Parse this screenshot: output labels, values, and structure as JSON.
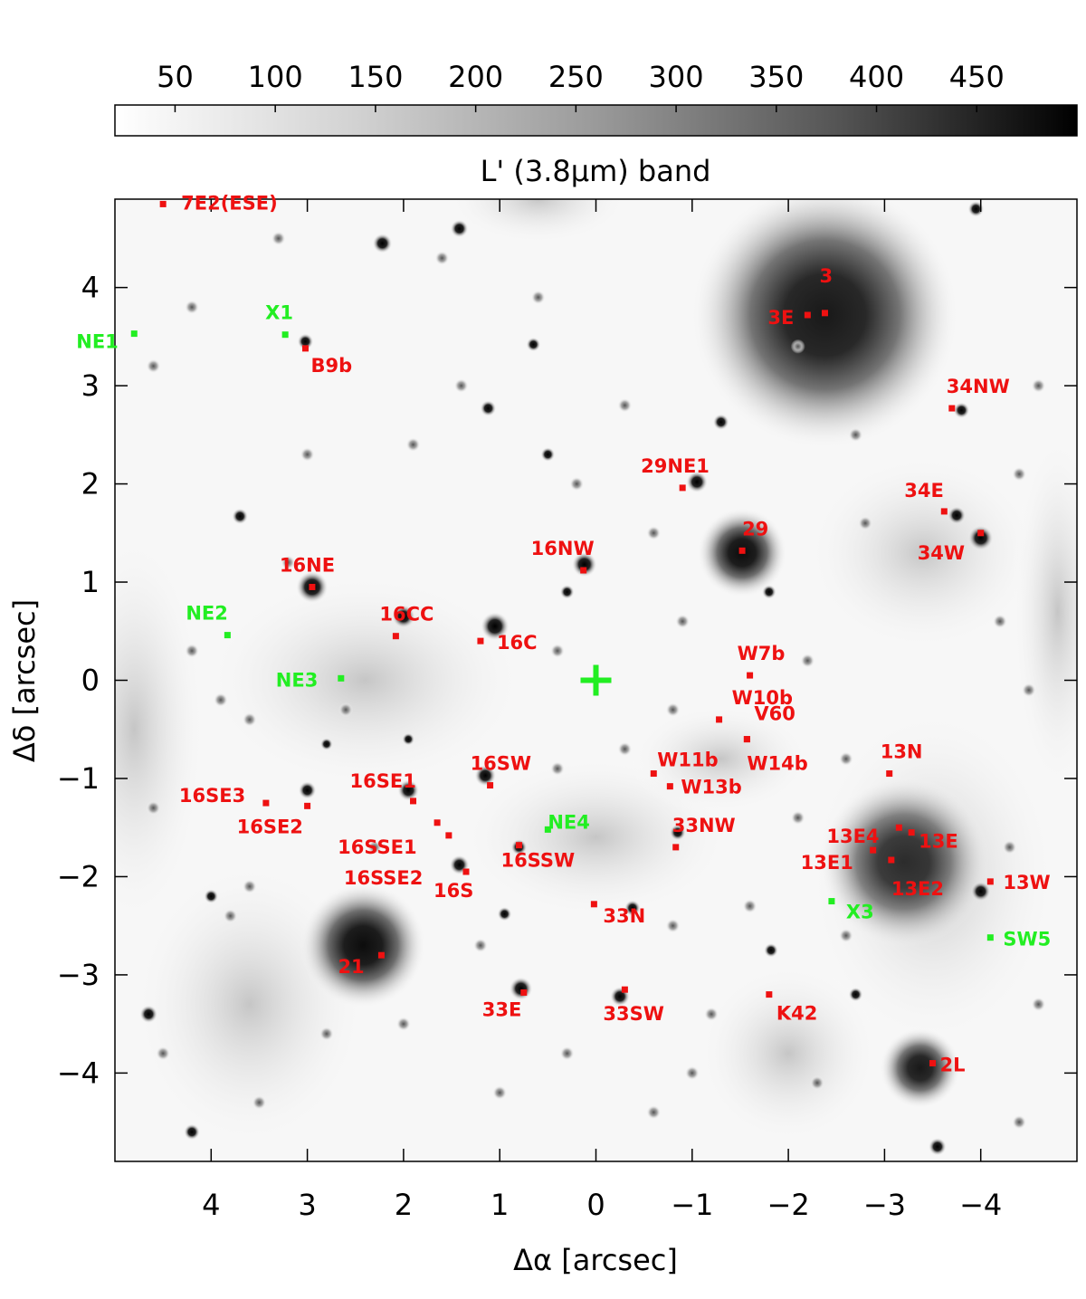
{
  "chart_data": {
    "type": "image",
    "colorbar": {
      "label": "L' (3.8μm) band",
      "ticks": [
        50,
        100,
        150,
        200,
        250,
        300,
        350,
        400,
        450
      ],
      "range": [
        20,
        500
      ],
      "colormap": "gray-reversed"
    },
    "xlabel": "Δα [arcsec]",
    "ylabel": "Δδ [arcsec]",
    "xlim": [
      5,
      -5
    ],
    "ylim": [
      -4.9,
      4.9
    ],
    "xticks": [
      4,
      3,
      2,
      1,
      0,
      -1,
      -2,
      -3,
      -4
    ],
    "yticks": [
      4,
      3,
      2,
      1,
      0,
      -1,
      -2,
      -3,
      -4
    ],
    "xtick_labels": [
      "4",
      "3",
      "2",
      "1",
      "0",
      "−1",
      "−2",
      "−3",
      "−4"
    ],
    "ytick_labels": [
      "4",
      "3",
      "2",
      "1",
      "0",
      "−1",
      "−2",
      "−3",
      "−4"
    ],
    "colors": {
      "red_marker": "#ee1111",
      "green_marker": "#22ee22"
    },
    "center_marker": {
      "x": 0,
      "y": 0,
      "symbol": "plus",
      "color": "#22ee22"
    },
    "sources": [
      {
        "label": "7E2(ESE)",
        "x": 4.5,
        "y": 4.85,
        "color": "red"
      },
      {
        "label": "3",
        "x": -2.38,
        "y": 3.74,
        "color": "red"
      },
      {
        "label": "3E",
        "x": -2.2,
        "y": 3.72,
        "color": "red"
      },
      {
        "label": "X1",
        "x": 3.23,
        "y": 3.52,
        "color": "green"
      },
      {
        "label": "NE1",
        "x": 4.8,
        "y": 3.53,
        "color": "green"
      },
      {
        "label": "B9b",
        "x": 3.02,
        "y": 3.38,
        "color": "red"
      },
      {
        "label": "34NW",
        "x": -3.7,
        "y": 2.77,
        "color": "red"
      },
      {
        "label": "29NE1",
        "x": -0.9,
        "y": 1.96,
        "color": "red"
      },
      {
        "label": "34E",
        "x": -3.62,
        "y": 1.72,
        "color": "red"
      },
      {
        "label": "29",
        "x": -1.52,
        "y": 1.32,
        "color": "red"
      },
      {
        "label": "34W",
        "x": -4.0,
        "y": 1.5,
        "color": "red"
      },
      {
        "label": "16NW",
        "x": 0.13,
        "y": 1.12,
        "color": "red"
      },
      {
        "label": "16NE",
        "x": 2.95,
        "y": 0.95,
        "color": "red"
      },
      {
        "label": "NE2",
        "x": 3.83,
        "y": 0.46,
        "color": "green"
      },
      {
        "label": "16CC",
        "x": 2.08,
        "y": 0.45,
        "color": "red"
      },
      {
        "label": "16C",
        "x": 1.2,
        "y": 0.4,
        "color": "red"
      },
      {
        "label": "W7b",
        "x": -1.6,
        "y": 0.05,
        "color": "red"
      },
      {
        "label": "NE3",
        "x": 2.65,
        "y": 0.02,
        "color": "green"
      },
      {
        "label": "W10b",
        "x": -1.28,
        "y": -0.4,
        "color": "red"
      },
      {
        "label": "V60",
        "x": -1.57,
        "y": -0.6,
        "color": "red"
      },
      {
        "label": "W14b",
        "x": -1.57,
        "y": -0.6,
        "color": "red"
      },
      {
        "label": "13N",
        "x": -3.05,
        "y": -0.95,
        "color": "red"
      },
      {
        "label": "W11b",
        "x": -0.6,
        "y": -0.95,
        "color": "red"
      },
      {
        "label": "W13b",
        "x": -0.77,
        "y": -1.08,
        "color": "red"
      },
      {
        "label": "16SW",
        "x": 1.1,
        "y": -1.07,
        "color": "red"
      },
      {
        "label": "16SE1",
        "x": 1.9,
        "y": -1.23,
        "color": "red"
      },
      {
        "label": "16SE3",
        "x": 3.43,
        "y": -1.25,
        "color": "red"
      },
      {
        "label": "16SE2",
        "x": 3.0,
        "y": -1.28,
        "color": "red"
      },
      {
        "label": "16SSE1",
        "x": 1.65,
        "y": -1.45,
        "color": "red"
      },
      {
        "label": "16SSE2",
        "x": 1.53,
        "y": -1.58,
        "color": "red"
      },
      {
        "label": "NE4",
        "x": 0.5,
        "y": -1.52,
        "color": "green"
      },
      {
        "label": "33NW",
        "x": -0.83,
        "y": -1.7,
        "color": "red"
      },
      {
        "label": "16SSW",
        "x": 0.8,
        "y": -1.68,
        "color": "red"
      },
      {
        "label": "13E4",
        "x": -3.15,
        "y": -1.5,
        "color": "red"
      },
      {
        "label": "13E",
        "x": -3.28,
        "y": -1.55,
        "color": "red"
      },
      {
        "label": "13E1",
        "x": -2.88,
        "y": -1.73,
        "color": "red"
      },
      {
        "label": "13E2",
        "x": -3.07,
        "y": -1.83,
        "color": "red"
      },
      {
        "label": "16S",
        "x": 1.35,
        "y": -1.95,
        "color": "red"
      },
      {
        "label": "13W",
        "x": -4.1,
        "y": -2.05,
        "color": "red"
      },
      {
        "label": "X3",
        "x": -2.45,
        "y": -2.25,
        "color": "green"
      },
      {
        "label": "33N",
        "x": 0.02,
        "y": -2.28,
        "color": "red"
      },
      {
        "label": "SW5",
        "x": -4.1,
        "y": -2.62,
        "color": "green"
      },
      {
        "label": "21",
        "x": 2.23,
        "y": -2.8,
        "color": "red"
      },
      {
        "label": "33E",
        "x": 0.75,
        "y": -3.18,
        "color": "red"
      },
      {
        "label": "33SW",
        "x": -0.3,
        "y": -3.15,
        "color": "red"
      },
      {
        "label": "K42",
        "x": -1.8,
        "y": -3.2,
        "color": "red"
      },
      {
        "label": "2L",
        "x": -3.5,
        "y": -3.9,
        "color": "red"
      }
    ]
  }
}
